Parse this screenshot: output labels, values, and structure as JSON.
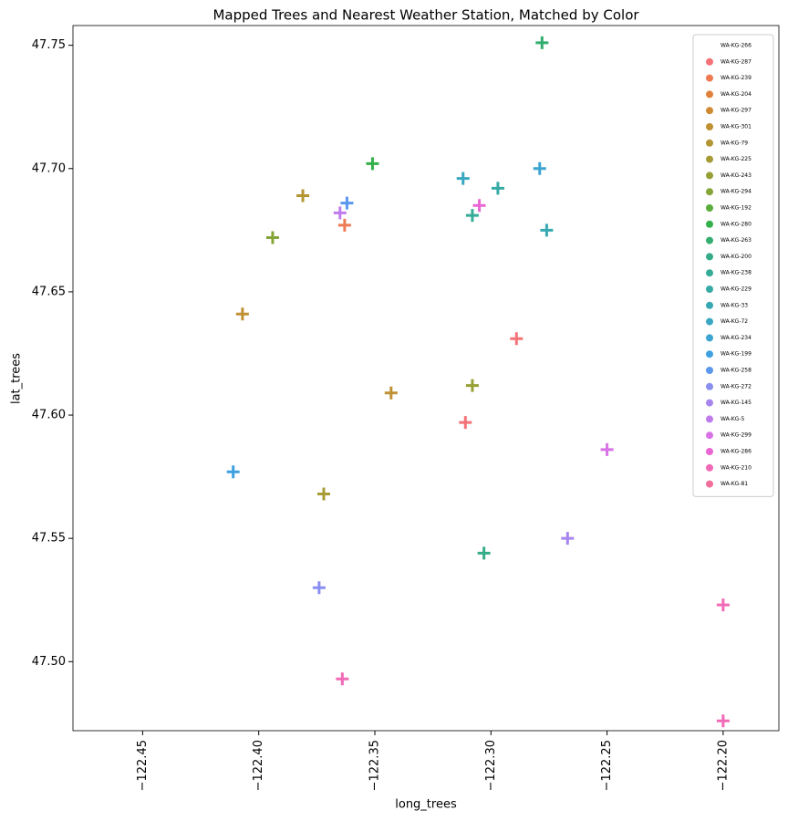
{
  "chart_data": {
    "type": "scatter",
    "title": "Mapped Trees and Nearest Weather Station, Matched by Color",
    "x_label": "long_trees",
    "y_label": "lat_trees",
    "xlim": [
      -122.48,
      -122.176
    ],
    "ylim": [
      47.472,
      47.758
    ],
    "xticks": [
      {
        "value": -122.45,
        "label": "−122.45"
      },
      {
        "value": -122.4,
        "label": "−122.40"
      },
      {
        "value": -122.35,
        "label": "−122.35"
      },
      {
        "value": -122.3,
        "label": "−122.30"
      },
      {
        "value": -122.25,
        "label": "−122.25"
      },
      {
        "value": -122.2,
        "label": "−122.20"
      }
    ],
    "yticks": [
      {
        "value": 47.5,
        "label": "47.50"
      },
      {
        "value": 47.55,
        "label": "47.55"
      },
      {
        "value": 47.6,
        "label": "47.60"
      },
      {
        "value": 47.65,
        "label": "47.65"
      },
      {
        "value": 47.7,
        "label": "47.70"
      },
      {
        "value": 47.75,
        "label": "47.75"
      }
    ],
    "legend": "upper right",
    "series": [
      {
        "name": "WA-KG-266",
        "x": [],
        "y": []
      },
      {
        "name": "WA-KG-287",
        "color": "#f37378",
        "x": [
          -122.289,
          -122.311
        ],
        "y": [
          47.631,
          47.597
        ]
      },
      {
        "name": "WA-KG-239",
        "color": "#ee7a52",
        "x": [
          -122.363
        ],
        "y": [
          47.677
        ]
      },
      {
        "name": "WA-KG-204",
        "color": "#e0803a",
        "x": [],
        "y": []
      },
      {
        "name": "WA-KG-297",
        "color": "#cf8a33",
        "x": [],
        "y": []
      },
      {
        "name": "WA-KG-301",
        "color": "#bf9133",
        "x": [
          -122.343,
          -122.407
        ],
        "y": [
          47.609,
          47.641
        ]
      },
      {
        "name": "WA-KG-79",
        "color": "#b39534",
        "x": [
          -122.381
        ],
        "y": [
          47.689
        ]
      },
      {
        "name": "WA-KG-225",
        "color": "#a69b34",
        "x": [
          -122.372
        ],
        "y": [
          47.568
        ]
      },
      {
        "name": "WA-KG-243",
        "color": "#97a035",
        "x": [
          -122.308
        ],
        "y": [
          47.612
        ]
      },
      {
        "name": "WA-KG-294",
        "color": "#84a537",
        "x": [
          -122.394
        ],
        "y": [
          47.672
        ]
      },
      {
        "name": "WA-KG-192",
        "color": "#5aad3c",
        "x": [],
        "y": []
      },
      {
        "name": "WA-KG-280",
        "color": "#33b04a",
        "x": [
          -122.351
        ],
        "y": [
          47.702
        ]
      },
      {
        "name": "WA-KG-263",
        "color": "#34ae6f",
        "x": [
          -122.278
        ],
        "y": [
          47.751
        ]
      },
      {
        "name": "WA-KG-200",
        "color": "#35ac88",
        "x": [
          -122.303
        ],
        "y": [
          47.544
        ]
      },
      {
        "name": "WA-KG-238",
        "color": "#36ab98",
        "x": [
          -122.308
        ],
        "y": [
          47.681
        ]
      },
      {
        "name": "WA-KG-229",
        "color": "#37aaa6",
        "x": [
          -122.297
        ],
        "y": [
          47.692
        ]
      },
      {
        "name": "WA-KG-33",
        "color": "#38a9b3",
        "x": [
          -122.276
        ],
        "y": [
          47.675
        ]
      },
      {
        "name": "WA-KG-72",
        "color": "#39a7c1",
        "x": [
          -122.312
        ],
        "y": [
          47.696
        ]
      },
      {
        "name": "WA-KG-234",
        "color": "#3ba4d0",
        "x": [
          -122.279
        ],
        "y": [
          47.7
        ]
      },
      {
        "name": "WA-KG-199",
        "color": "#3ea0e0",
        "x": [
          -122.411
        ],
        "y": [
          47.577
        ]
      },
      {
        "name": "WA-KG-258",
        "color": "#5c98ee",
        "x": [
          -122.362
        ],
        "y": [
          47.686
        ]
      },
      {
        "name": "WA-KG-272",
        "color": "#8a8ef0",
        "x": [
          -122.374
        ],
        "y": [
          47.53
        ]
      },
      {
        "name": "WA-KG-145",
        "color": "#a885ee",
        "x": [
          -122.267
        ],
        "y": [
          47.55
        ]
      },
      {
        "name": "WA-KG-5",
        "color": "#c07cee",
        "x": [
          -122.365
        ],
        "y": [
          47.682
        ]
      },
      {
        "name": "WA-KG-299",
        "color": "#d872e6",
        "x": [
          -122.25
        ],
        "y": [
          47.586
        ]
      },
      {
        "name": "WA-KG-286",
        "color": "#ea66d5",
        "x": [
          -122.305
        ],
        "y": [
          47.685
        ]
      },
      {
        "name": "WA-KG-210",
        "color": "#f06ab7",
        "x": [
          -122.2,
          -122.364,
          -122.2
        ],
        "y": [
          47.523,
          47.493,
          47.476
        ]
      },
      {
        "name": "WA-KG-81",
        "color": "#f06f9a",
        "x": [],
        "y": []
      }
    ]
  }
}
